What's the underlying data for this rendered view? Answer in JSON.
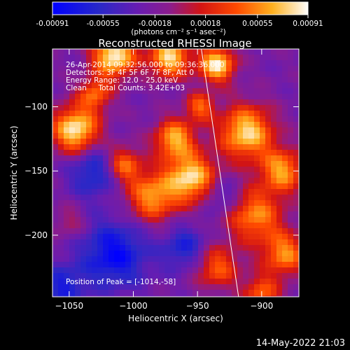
{
  "chart_data": {
    "type": "heatmap",
    "title": "Reconstructed RHESSI Image",
    "xlabel": "Heliocentric X (arcsec)",
    "ylabel": "Heliocentric Y (arcsec)",
    "xlim": [
      -1063,
      -871
    ],
    "ylim": [
      -248,
      -55
    ],
    "x_ticks": [
      -1050,
      -1000,
      -950,
      -900
    ],
    "x_tick_labels": [
      "−1050",
      "−1000",
      "−950",
      "−900"
    ],
    "y_ticks": [
      -100,
      -150,
      -200
    ],
    "y_tick_labels": [
      "−100",
      "−150",
      "−200"
    ],
    "colorbar": {
      "min": -0.00091,
      "max": 0.00091,
      "tick_values": [
        -0.00091,
        -0.00055,
        -0.00018,
        0.00018,
        0.00055,
        0.00091
      ],
      "tick_labels": [
        "-0.00091",
        "-0.00055",
        "-0.00018",
        "0.00018",
        "0.00055",
        "0.00091"
      ],
      "units_label": "(photons cm⁻² s⁻¹ asec⁻²)"
    },
    "annotations": [
      "26-Apr-2014 09:32:56.000 to 09:36:36.000",
      "Detectors: 3F 4F 5F 6F 7F 8F, Att 0",
      "Energy Range: 12.0 - 25.0 keV",
      "Clean     Total Counts: 3.42E+03"
    ],
    "peak_label": "Position of Peak = [-1014,-58]",
    "peak": {
      "x": -1014,
      "y": -58
    },
    "limb_line": [
      [
        -947,
        -55
      ],
      [
        -918,
        -248
      ]
    ],
    "colors": {
      "background": "#000000",
      "text": "#ffffff",
      "limb": "#ffffff"
    }
  },
  "footer": {
    "timestamp": "14-May-2022 21:03"
  }
}
